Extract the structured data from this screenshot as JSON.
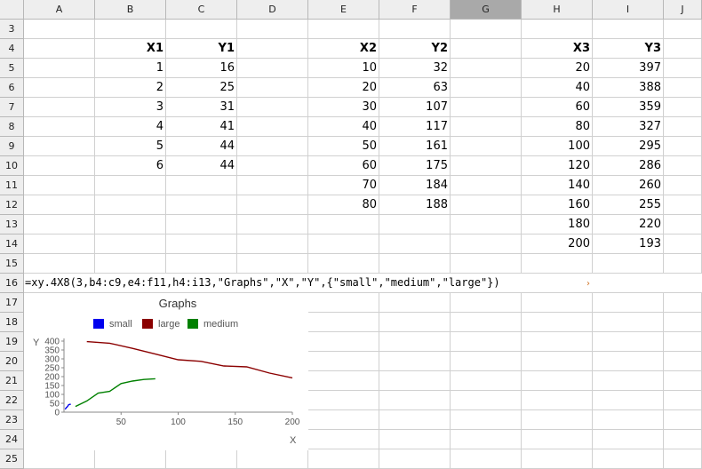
{
  "columns": [
    "A",
    "B",
    "C",
    "D",
    "E",
    "F",
    "G",
    "H",
    "I",
    "J"
  ],
  "selected_column": "G",
  "rows": [
    "3",
    "4",
    "5",
    "6",
    "7",
    "8",
    "9",
    "10",
    "11",
    "12",
    "13",
    "14",
    "15",
    "16",
    "17",
    "18",
    "19",
    "20",
    "21",
    "22",
    "23",
    "24",
    "25"
  ],
  "table1": {
    "headers": [
      "X1",
      "Y1"
    ],
    "x": [
      "1",
      "2",
      "3",
      "4",
      "5",
      "6"
    ],
    "y": [
      "16",
      "25",
      "31",
      "41",
      "44",
      "44"
    ]
  },
  "table2": {
    "headers": [
      "X2",
      "Y2"
    ],
    "x": [
      "10",
      "20",
      "30",
      "40",
      "50",
      "60",
      "70",
      "80"
    ],
    "y": [
      "32",
      "63",
      "107",
      "117",
      "161",
      "175",
      "184",
      "188"
    ]
  },
  "table3": {
    "headers": [
      "X3",
      "Y3"
    ],
    "x": [
      "20",
      "40",
      "60",
      "80",
      "100",
      "120",
      "140",
      "160",
      "180",
      "200"
    ],
    "y": [
      "397",
      "388",
      "359",
      "327",
      "295",
      "286",
      "260",
      "255",
      "220",
      "193"
    ]
  },
  "formula_text": "=xy.4X8(3,b4:c9,e4:f11,h4:i13,\"Graphs\",\"X\",\"Y\",{\"small\",\"medium\",\"large\"})",
  "chart_data": {
    "type": "line",
    "title": "Graphs",
    "xlabel": "X",
    "ylabel": "Y",
    "legend_placement": "top",
    "legend": [
      {
        "name": "small",
        "color": "#0000ee"
      },
      {
        "name": "large",
        "color": "#8b0000"
      },
      {
        "name": "medium",
        "color": "#008000"
      }
    ],
    "xlim": [
      0,
      200
    ],
    "ylim": [
      0,
      400
    ],
    "x_ticks": [
      "50",
      "100",
      "150",
      "200"
    ],
    "y_ticks": [
      "0",
      "50",
      "100",
      "150",
      "200",
      "250",
      "300",
      "350",
      "400"
    ],
    "series": [
      {
        "name": "small",
        "color": "#0000ee",
        "x": [
          1,
          2,
          3,
          4,
          5,
          6
        ],
        "y": [
          16,
          25,
          31,
          41,
          44,
          44
        ]
      },
      {
        "name": "medium",
        "color": "#008000",
        "x": [
          10,
          20,
          30,
          40,
          50,
          60,
          70,
          80
        ],
        "y": [
          32,
          63,
          107,
          117,
          161,
          175,
          184,
          188
        ]
      },
      {
        "name": "large",
        "color": "#8b0000",
        "x": [
          20,
          40,
          60,
          80,
          100,
          120,
          140,
          160,
          180,
          200
        ],
        "y": [
          397,
          388,
          359,
          327,
          295,
          286,
          260,
          255,
          220,
          193
        ]
      }
    ]
  }
}
